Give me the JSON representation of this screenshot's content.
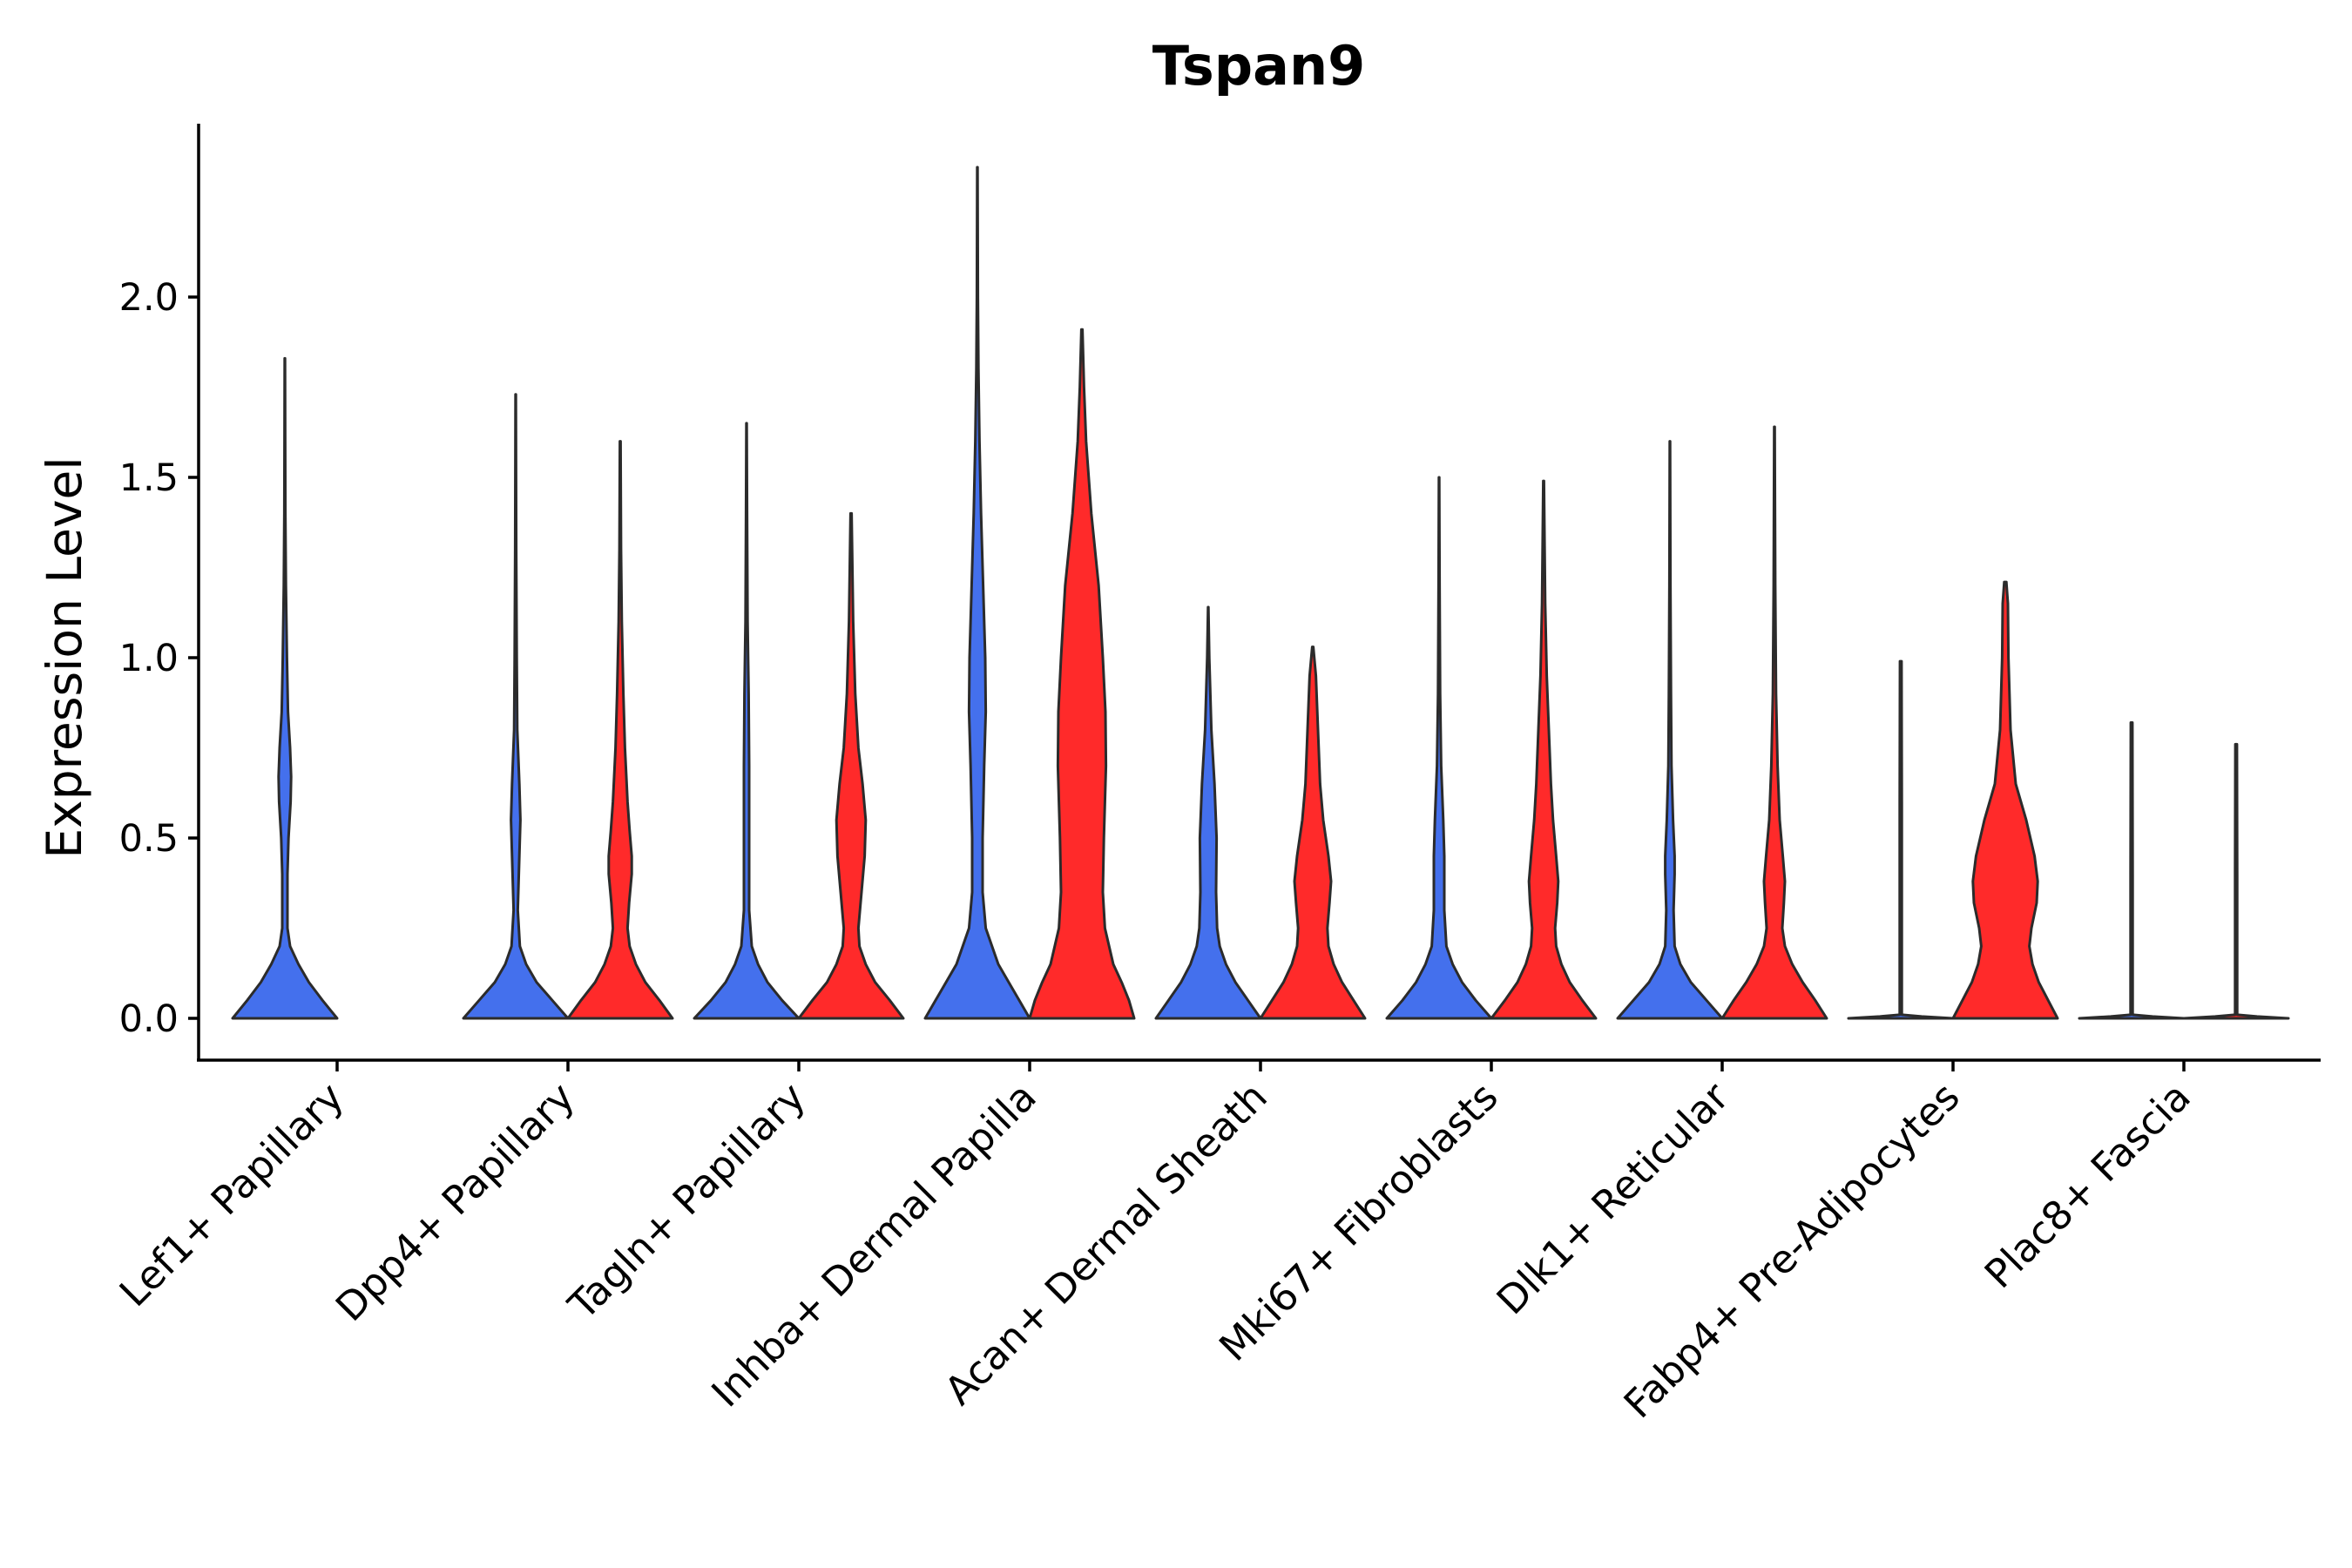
{
  "chart_data": {
    "type": "violin",
    "title": "Tspan9",
    "xlabel": "",
    "ylabel": "Expression Level",
    "ylim": [
      -0.12,
      2.45
    ],
    "yticks": [
      "0.0",
      "0.5",
      "1.0",
      "1.5",
      "2.0"
    ],
    "grid": false,
    "legend": "none",
    "series_colors": {
      "group1": "#4470ED",
      "group2": "#FF2A2A"
    },
    "categories": [
      "Lef1+ Papillary",
      "Dpp4+ Papillary",
      "Tagln+ Papillary",
      "Inhba+ Dermal Papilla",
      "Acan+ Dermal Sheath",
      "Mki67+ Fibroblasts",
      "Dlk1+ Reticular",
      "Fabp4+ Pre-Adipocytes",
      "Plac8+ Fascia"
    ],
    "violins": [
      {
        "category": "Lef1+ Papillary",
        "group": "group1",
        "max": 1.83,
        "profile": [
          [
            0,
            1.0
          ],
          [
            0.05,
            0.72
          ],
          [
            0.1,
            0.46
          ],
          [
            0.15,
            0.26
          ],
          [
            0.2,
            0.1
          ],
          [
            0.25,
            0.05
          ],
          [
            0.4,
            0.05
          ],
          [
            0.5,
            0.07
          ],
          [
            0.6,
            0.11
          ],
          [
            0.67,
            0.12
          ],
          [
            0.75,
            0.1
          ],
          [
            0.85,
            0.06
          ],
          [
            1.0,
            0.04
          ],
          [
            1.2,
            0.02
          ],
          [
            1.4,
            0.01
          ],
          [
            1.6,
            0.006
          ],
          [
            1.83,
            0.003
          ]
        ]
      },
      {
        "category": "Dpp4+ Papillary",
        "group": "group1",
        "max": 1.73,
        "profile": [
          [
            0,
            1.0
          ],
          [
            0.05,
            0.7
          ],
          [
            0.1,
            0.4
          ],
          [
            0.15,
            0.2
          ],
          [
            0.2,
            0.08
          ],
          [
            0.3,
            0.04
          ],
          [
            0.45,
            0.07
          ],
          [
            0.55,
            0.09
          ],
          [
            0.65,
            0.07
          ],
          [
            0.8,
            0.03
          ],
          [
            1.0,
            0.02
          ],
          [
            1.3,
            0.01
          ],
          [
            1.73,
            0.004
          ]
        ]
      },
      {
        "category": "Dpp4+ Papillary",
        "group": "group2",
        "max": 1.6,
        "profile": [
          [
            0,
            1.0
          ],
          [
            0.05,
            0.75
          ],
          [
            0.1,
            0.48
          ],
          [
            0.15,
            0.3
          ],
          [
            0.2,
            0.18
          ],
          [
            0.25,
            0.14
          ],
          [
            0.32,
            0.17
          ],
          [
            0.4,
            0.22
          ],
          [
            0.45,
            0.22
          ],
          [
            0.52,
            0.18
          ],
          [
            0.6,
            0.14
          ],
          [
            0.75,
            0.09
          ],
          [
            0.9,
            0.06
          ],
          [
            1.1,
            0.03
          ],
          [
            1.3,
            0.015
          ],
          [
            1.6,
            0.006
          ]
        ]
      },
      {
        "category": "Tagln+ Papillary",
        "group": "group1",
        "max": 1.65,
        "profile": [
          [
            0,
            1.0
          ],
          [
            0.05,
            0.68
          ],
          [
            0.1,
            0.4
          ],
          [
            0.15,
            0.22
          ],
          [
            0.2,
            0.1
          ],
          [
            0.3,
            0.05
          ],
          [
            0.5,
            0.05
          ],
          [
            0.7,
            0.05
          ],
          [
            0.9,
            0.04
          ],
          [
            1.1,
            0.02
          ],
          [
            1.4,
            0.01
          ],
          [
            1.65,
            0.004
          ]
        ]
      },
      {
        "category": "Tagln+ Papillary",
        "group": "group2",
        "max": 1.4,
        "profile": [
          [
            0,
            1.0
          ],
          [
            0.05,
            0.74
          ],
          [
            0.1,
            0.46
          ],
          [
            0.15,
            0.28
          ],
          [
            0.2,
            0.16
          ],
          [
            0.25,
            0.14
          ],
          [
            0.35,
            0.2
          ],
          [
            0.45,
            0.26
          ],
          [
            0.55,
            0.28
          ],
          [
            0.65,
            0.22
          ],
          [
            0.75,
            0.14
          ],
          [
            0.9,
            0.08
          ],
          [
            1.1,
            0.04
          ],
          [
            1.4,
            0.01
          ]
        ]
      },
      {
        "category": "Inhba+ Dermal Papilla",
        "group": "group1",
        "max": 2.36,
        "profile": [
          [
            0,
            1.0
          ],
          [
            0.05,
            0.8
          ],
          [
            0.1,
            0.6
          ],
          [
            0.15,
            0.4
          ],
          [
            0.25,
            0.16
          ],
          [
            0.35,
            0.1
          ],
          [
            0.5,
            0.1
          ],
          [
            0.7,
            0.13
          ],
          [
            0.85,
            0.16
          ],
          [
            1.0,
            0.15
          ],
          [
            1.2,
            0.11
          ],
          [
            1.4,
            0.07
          ],
          [
            1.6,
            0.04
          ],
          [
            1.8,
            0.02
          ],
          [
            2.0,
            0.01
          ],
          [
            2.36,
            0.004
          ]
        ]
      },
      {
        "category": "Inhba+ Dermal Papilla",
        "group": "group2",
        "max": 1.91,
        "profile": [
          [
            0,
            1.0
          ],
          [
            0.05,
            0.9
          ],
          [
            0.1,
            0.76
          ],
          [
            0.15,
            0.6
          ],
          [
            0.25,
            0.44
          ],
          [
            0.35,
            0.4
          ],
          [
            0.5,
            0.42
          ],
          [
            0.7,
            0.46
          ],
          [
            0.85,
            0.45
          ],
          [
            1.0,
            0.4
          ],
          [
            1.2,
            0.32
          ],
          [
            1.4,
            0.18
          ],
          [
            1.6,
            0.08
          ],
          [
            1.75,
            0.04
          ],
          [
            1.91,
            0.01
          ]
        ]
      },
      {
        "category": "Acan+ Dermal Sheath",
        "group": "group1",
        "max": 1.14,
        "profile": [
          [
            0,
            1.0
          ],
          [
            0.05,
            0.76
          ],
          [
            0.1,
            0.52
          ],
          [
            0.15,
            0.34
          ],
          [
            0.2,
            0.22
          ],
          [
            0.25,
            0.17
          ],
          [
            0.35,
            0.15
          ],
          [
            0.5,
            0.16
          ],
          [
            0.65,
            0.12
          ],
          [
            0.8,
            0.06
          ],
          [
            1.0,
            0.02
          ],
          [
            1.14,
            0.004
          ]
        ]
      },
      {
        "category": "Acan+ Dermal Sheath",
        "group": "group2",
        "max": 1.03,
        "profile": [
          [
            0,
            1.0
          ],
          [
            0.05,
            0.78
          ],
          [
            0.1,
            0.56
          ],
          [
            0.15,
            0.4
          ],
          [
            0.2,
            0.3
          ],
          [
            0.25,
            0.28
          ],
          [
            0.32,
            0.32
          ],
          [
            0.38,
            0.35
          ],
          [
            0.45,
            0.3
          ],
          [
            0.55,
            0.2
          ],
          [
            0.65,
            0.14
          ],
          [
            0.8,
            0.1
          ],
          [
            0.95,
            0.06
          ],
          [
            1.03,
            0.01
          ]
        ]
      },
      {
        "category": "Mki67+ Fibroblasts",
        "group": "group1",
        "max": 1.5,
        "profile": [
          [
            0,
            1.0
          ],
          [
            0.05,
            0.7
          ],
          [
            0.1,
            0.44
          ],
          [
            0.15,
            0.26
          ],
          [
            0.2,
            0.14
          ],
          [
            0.3,
            0.1
          ],
          [
            0.45,
            0.1
          ],
          [
            0.55,
            0.08
          ],
          [
            0.7,
            0.04
          ],
          [
            0.9,
            0.02
          ],
          [
            1.2,
            0.01
          ],
          [
            1.5,
            0.004
          ]
        ]
      },
      {
        "category": "Mki67+ Fibroblasts",
        "group": "group2",
        "max": 1.49,
        "profile": [
          [
            0,
            1.0
          ],
          [
            0.05,
            0.74
          ],
          [
            0.1,
            0.5
          ],
          [
            0.15,
            0.34
          ],
          [
            0.2,
            0.24
          ],
          [
            0.25,
            0.22
          ],
          [
            0.32,
            0.26
          ],
          [
            0.38,
            0.28
          ],
          [
            0.45,
            0.24
          ],
          [
            0.55,
            0.18
          ],
          [
            0.65,
            0.14
          ],
          [
            0.8,
            0.1
          ],
          [
            0.95,
            0.06
          ],
          [
            1.15,
            0.03
          ],
          [
            1.49,
            0.006
          ]
        ]
      },
      {
        "category": "Dlk1+ Reticular",
        "group": "group1",
        "max": 1.6,
        "profile": [
          [
            0,
            1.0
          ],
          [
            0.05,
            0.7
          ],
          [
            0.1,
            0.4
          ],
          [
            0.15,
            0.2
          ],
          [
            0.2,
            0.09
          ],
          [
            0.3,
            0.07
          ],
          [
            0.4,
            0.09
          ],
          [
            0.45,
            0.09
          ],
          [
            0.55,
            0.06
          ],
          [
            0.7,
            0.03
          ],
          [
            0.9,
            0.02
          ],
          [
            1.2,
            0.01
          ],
          [
            1.6,
            0.004
          ]
        ]
      },
      {
        "category": "Dlk1+ Reticular",
        "group": "group2",
        "max": 1.64,
        "profile": [
          [
            0,
            1.0
          ],
          [
            0.05,
            0.78
          ],
          [
            0.1,
            0.54
          ],
          [
            0.15,
            0.34
          ],
          [
            0.2,
            0.2
          ],
          [
            0.25,
            0.15
          ],
          [
            0.32,
            0.18
          ],
          [
            0.38,
            0.2
          ],
          [
            0.45,
            0.16
          ],
          [
            0.55,
            0.1
          ],
          [
            0.7,
            0.06
          ],
          [
            0.9,
            0.03
          ],
          [
            1.2,
            0.015
          ],
          [
            1.64,
            0.005
          ]
        ]
      },
      {
        "category": "Fabp4+ Pre-Adipocytes",
        "group": "group1",
        "max": 0.99,
        "profile": [
          [
            0,
            1.0
          ],
          [
            0.005,
            0.4
          ],
          [
            0.01,
            0.02
          ],
          [
            0.3,
            0.02
          ],
          [
            0.6,
            0.02
          ],
          [
            0.99,
            0.015
          ]
        ]
      },
      {
        "category": "Fabp4+ Pre-Adipocytes",
        "group": "group2",
        "max": 1.21,
        "profile": [
          [
            0,
            1.0
          ],
          [
            0.05,
            0.82
          ],
          [
            0.1,
            0.64
          ],
          [
            0.15,
            0.52
          ],
          [
            0.2,
            0.46
          ],
          [
            0.25,
            0.5
          ],
          [
            0.32,
            0.6
          ],
          [
            0.38,
            0.62
          ],
          [
            0.45,
            0.56
          ],
          [
            0.55,
            0.4
          ],
          [
            0.65,
            0.2
          ],
          [
            0.8,
            0.1
          ],
          [
            1.0,
            0.06
          ],
          [
            1.15,
            0.05
          ],
          [
            1.21,
            0.02
          ]
        ]
      },
      {
        "category": "Plac8+ Fascia",
        "group": "group1",
        "max": 0.82,
        "profile": [
          [
            0,
            1.0
          ],
          [
            0.005,
            0.4
          ],
          [
            0.01,
            0.02
          ],
          [
            0.4,
            0.02
          ],
          [
            0.82,
            0.015
          ]
        ]
      },
      {
        "category": "Plac8+ Fascia",
        "group": "group2",
        "max": 0.76,
        "profile": [
          [
            0,
            1.0
          ],
          [
            0.005,
            0.4
          ],
          [
            0.01,
            0.02
          ],
          [
            0.4,
            0.02
          ],
          [
            0.76,
            0.015
          ]
        ]
      }
    ]
  }
}
